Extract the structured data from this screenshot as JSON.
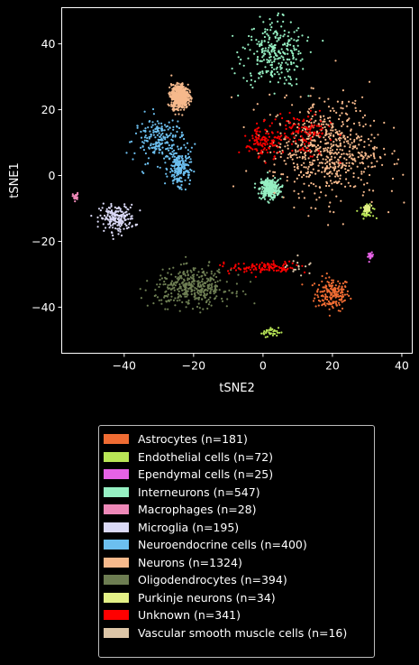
{
  "chart_data": {
    "type": "scatter",
    "xlabel": "tSNE2",
    "ylabel": "tSNE1",
    "xlim": [
      -58,
      43
    ],
    "ylim": [
      -54,
      51
    ],
    "xticks": [
      -40,
      -20,
      0,
      20,
      40
    ],
    "yticks": [
      -40,
      -20,
      0,
      20,
      40
    ],
    "grid": false,
    "legend_position": "below",
    "series": [
      {
        "name": "Astrocytes (n=181)",
        "color": "#f06c33",
        "count": 181,
        "clusters": [
          {
            "cx": 20,
            "cy": -36,
            "sx": 2.5,
            "sy": 2.5
          }
        ]
      },
      {
        "name": "Endothelial cells (n=72)",
        "color": "#b9e656",
        "count": 72,
        "clusters": [
          {
            "cx": 2,
            "cy": -47.5,
            "sx": 1.2,
            "sy": 0.7
          },
          {
            "cx": 30,
            "cy": -11,
            "sx": 1.0,
            "sy": 1.0
          }
        ]
      },
      {
        "name": "Ependymal cells (n=25)",
        "color": "#e662e6",
        "count": 25,
        "clusters": [
          {
            "cx": 31,
            "cy": -24.5,
            "sx": 0.4,
            "sy": 0.5
          }
        ]
      },
      {
        "name": "Interneurons (n=547)",
        "color": "#96f0c3",
        "count": 547,
        "clusters": [
          {
            "cx": 3,
            "cy": 37,
            "sx": 4.5,
            "sy": 5.0
          },
          {
            "cx": 2,
            "cy": -4,
            "sx": 1.5,
            "sy": 1.5
          }
        ]
      },
      {
        "name": "Macrophages (n=28)",
        "color": "#ee88b8",
        "count": 28,
        "clusters": [
          {
            "cx": -54,
            "cy": -6.5,
            "sx": 0.4,
            "sy": 0.6
          }
        ]
      },
      {
        "name": "Microglia (n=195)",
        "color": "#dad9f6",
        "count": 195,
        "clusters": [
          {
            "cx": -42,
            "cy": -13,
            "sx": 2.5,
            "sy": 2.0
          }
        ]
      },
      {
        "name": "Neuroendocrine cells (n=400)",
        "color": "#6cbfef",
        "count": 400,
        "clusters": [
          {
            "cx": -30,
            "cy": 11,
            "sx": 3.5,
            "sy": 3.5
          },
          {
            "cx": -24,
            "cy": 2,
            "sx": 1.5,
            "sy": 2.5
          }
        ]
      },
      {
        "name": "Neurons (n=1324)",
        "color": "#f6b98c",
        "count": 1324,
        "clusters": [
          {
            "cx": 18,
            "cy": 8,
            "sx": 8.0,
            "sy": 7.5
          },
          {
            "cx": -24,
            "cy": 24,
            "sx": 1.2,
            "sy": 1.8
          }
        ]
      },
      {
        "name": "Oligodendrocytes (n=394)",
        "color": "#6d7d52",
        "count": 394,
        "clusters": [
          {
            "cx": -20,
            "cy": -34,
            "sx": 5.5,
            "sy": 2.8
          }
        ]
      },
      {
        "name": "Purkinje neurons (n=34)",
        "color": "#e3f086",
        "count": 34,
        "clusters": [
          {
            "cx": 30,
            "cy": -10,
            "sx": 0.7,
            "sy": 0.6
          }
        ]
      },
      {
        "name": "Unknown (n=341)",
        "color": "#ff0000",
        "count": 341,
        "clusters": [
          {
            "cx": 0,
            "cy": 10,
            "sx": 2.5,
            "sy": 2.5
          },
          {
            "cx": 0,
            "cy": -28,
            "sx": 5.0,
            "sy": 1.0
          },
          {
            "cx": 12,
            "cy": 13,
            "sx": 4.0,
            "sy": 3.0
          }
        ]
      },
      {
        "name": "Vascular smooth muscle cells (n=16)",
        "color": "#ddc6a8",
        "count": 16,
        "clusters": [
          {
            "cx": 11,
            "cy": -28,
            "sx": 2.0,
            "sy": 1.5
          }
        ]
      }
    ]
  }
}
